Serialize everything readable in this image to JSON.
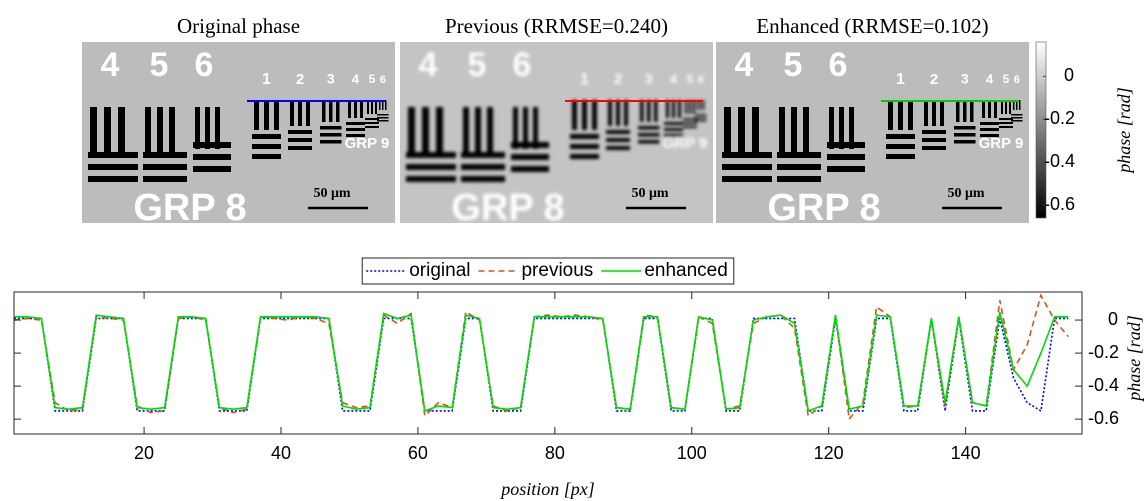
{
  "figure": {
    "panels": [
      {
        "title": "Original phase",
        "line_color": "#0000ff"
      },
      {
        "title": "Previous (RRMSE=0.240)",
        "line_color": "#ff0000"
      },
      {
        "title": "Enhanced (RRMSE=0.102)",
        "line_color": "#00cc00"
      }
    ],
    "image_labels": {
      "group_numbers": [
        "4",
        "5",
        "6"
      ],
      "element_numbers": [
        "1",
        "2",
        "3",
        "4",
        "5",
        "6"
      ],
      "group8": "GRP 8",
      "group9": "GRP 9",
      "scale": "50 μm"
    },
    "colorbar": {
      "lim": [
        -0.66,
        0.16
      ],
      "ticks": [
        0,
        -0.2,
        -0.4,
        -0.6
      ],
      "label": "phase [rad]"
    }
  },
  "chart_data": {
    "type": "line",
    "xlabel": "position [px]",
    "ylabel": "phase [rad]",
    "xlim": [
      1,
      157
    ],
    "ylim": [
      -0.69,
      0.17
    ],
    "xticks": [
      20,
      40,
      60,
      80,
      100,
      120,
      140
    ],
    "yticks": [
      0,
      -0.2,
      -0.4,
      -0.6
    ],
    "legend": "top",
    "x": [
      1,
      3,
      5,
      7,
      9,
      11,
      13,
      15,
      17,
      19,
      21,
      23,
      25,
      27,
      29,
      31,
      33,
      35,
      37,
      39,
      41,
      43,
      45,
      47,
      49,
      51,
      53,
      55,
      57,
      59,
      61,
      63,
      65,
      67,
      69,
      71,
      73,
      75,
      77,
      79,
      81,
      83,
      85,
      87,
      89,
      91,
      93,
      95,
      97,
      99,
      101,
      103,
      105,
      107,
      109,
      111,
      113,
      115,
      117,
      119,
      121,
      123,
      125,
      127,
      129,
      131,
      133,
      135,
      137,
      139,
      141,
      143,
      145,
      147,
      149,
      151,
      153,
      155
    ],
    "series": [
      {
        "name": "original",
        "color": "#0000ff",
        "style": "dotted",
        "values": [
          0.01,
          0.01,
          0.01,
          -0.55,
          -0.55,
          -0.55,
          0.01,
          0.01,
          0.01,
          -0.55,
          -0.55,
          -0.55,
          0.01,
          0.01,
          0.01,
          -0.55,
          -0.55,
          -0.55,
          0.01,
          0.01,
          0.01,
          0.01,
          0.01,
          0.01,
          -0.55,
          -0.55,
          -0.55,
          0.01,
          0.01,
          0.01,
          -0.55,
          -0.55,
          -0.55,
          0.01,
          0.01,
          -0.55,
          -0.55,
          -0.55,
          0.01,
          0.01,
          0.01,
          0.01,
          0.01,
          0.01,
          -0.55,
          -0.55,
          0.01,
          0.01,
          -0.55,
          -0.55,
          0.01,
          0.01,
          -0.55,
          -0.55,
          0.01,
          0.01,
          0.01,
          0.01,
          -0.55,
          -0.55,
          0.01,
          -0.55,
          -0.55,
          0.01,
          0.01,
          -0.55,
          -0.55,
          0.01,
          -0.55,
          0.01,
          -0.55,
          -0.55,
          0.01,
          -0.35,
          -0.5,
          -0.55,
          0.01,
          0.01
        ]
      },
      {
        "name": "previous",
        "color": "#d95319",
        "style": "dashed",
        "values": [
          0.0,
          0.01,
          0.0,
          -0.5,
          -0.55,
          -0.54,
          0.02,
          0.01,
          0.0,
          -0.52,
          -0.56,
          -0.55,
          0.01,
          0.02,
          0.0,
          -0.53,
          -0.56,
          -0.54,
          0.02,
          0.01,
          0.0,
          0.02,
          0.01,
          -0.02,
          -0.5,
          -0.53,
          -0.52,
          0.03,
          -0.02,
          0.04,
          -0.58,
          -0.5,
          -0.53,
          0.05,
          0.0,
          -0.52,
          -0.55,
          -0.53,
          0.02,
          0.03,
          0.02,
          0.03,
          0.02,
          0.0,
          -0.53,
          -0.54,
          0.03,
          0.02,
          -0.53,
          -0.54,
          0.02,
          -0.02,
          -0.54,
          -0.52,
          -0.02,
          0.02,
          0.03,
          -0.05,
          -0.58,
          -0.52,
          0.03,
          -0.6,
          -0.5,
          0.08,
          0.02,
          -0.53,
          -0.52,
          0.0,
          -0.52,
          0.02,
          -0.5,
          -0.52,
          0.12,
          -0.3,
          -0.15,
          0.15,
          0.0,
          -0.1
        ]
      },
      {
        "name": "enhanced",
        "color": "#00dd00",
        "style": "solid",
        "values": [
          0.02,
          0.02,
          0.01,
          -0.53,
          -0.54,
          -0.53,
          0.03,
          0.02,
          0.01,
          -0.53,
          -0.54,
          -0.53,
          0.02,
          0.02,
          0.01,
          -0.53,
          -0.54,
          -0.53,
          0.02,
          0.02,
          0.02,
          0.02,
          0.02,
          0.01,
          -0.52,
          -0.54,
          -0.53,
          0.04,
          0.01,
          0.03,
          -0.55,
          -0.52,
          -0.53,
          0.03,
          0.01,
          -0.53,
          -0.54,
          -0.53,
          0.02,
          0.02,
          0.02,
          0.02,
          0.02,
          0.01,
          -0.53,
          -0.54,
          0.02,
          0.02,
          -0.53,
          -0.54,
          0.02,
          0.0,
          -0.54,
          -0.53,
          0.0,
          0.02,
          0.03,
          -0.02,
          -0.55,
          -0.52,
          0.03,
          -0.54,
          -0.52,
          0.03,
          0.02,
          -0.52,
          -0.52,
          0.01,
          -0.5,
          0.02,
          -0.5,
          -0.52,
          0.05,
          -0.3,
          -0.4,
          -0.2,
          0.02,
          0.02
        ]
      }
    ]
  }
}
